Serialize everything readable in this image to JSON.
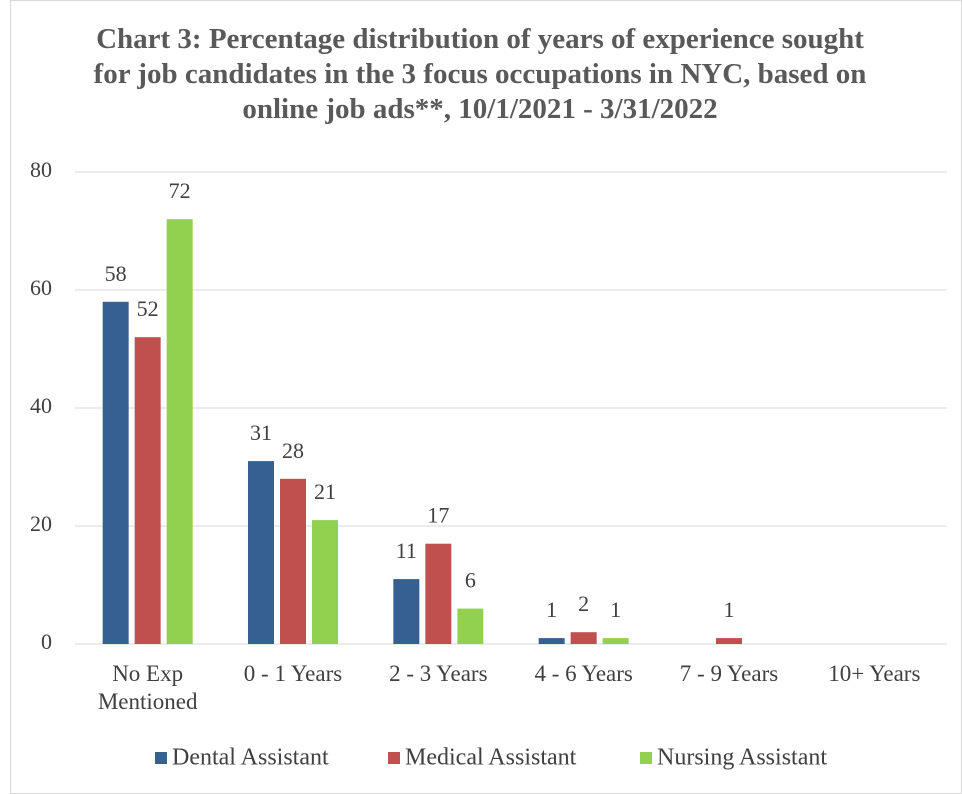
{
  "chart_data": {
    "type": "bar",
    "title": "Chart 3: Percentage distribution of years of experience sought for job candidates in the 3 focus occupations in NYC, based on online job ads**, 10/1/2021 - 3/31/2022",
    "categories": [
      "No Exp Mentioned",
      "0 - 1 Years",
      "2 - 3 Years",
      "4 - 6 Years",
      "7 - 9 Years",
      "10+ Years"
    ],
    "series": [
      {
        "name": "Dental Assistant",
        "color": "#376092",
        "values": [
          58,
          31,
          11,
          1,
          null,
          null
        ]
      },
      {
        "name": "Medical Assistant",
        "color": "#c0504d",
        "values": [
          52,
          28,
          17,
          2,
          1,
          null
        ]
      },
      {
        "name": "Nursing Assistant",
        "color": "#92d050",
        "values": [
          72,
          21,
          6,
          1,
          null,
          null
        ]
      }
    ],
    "ylim": [
      0,
      80
    ],
    "yticks": [
      0,
      20,
      40,
      60,
      80
    ],
    "grid": true,
    "legend": "bottom"
  }
}
